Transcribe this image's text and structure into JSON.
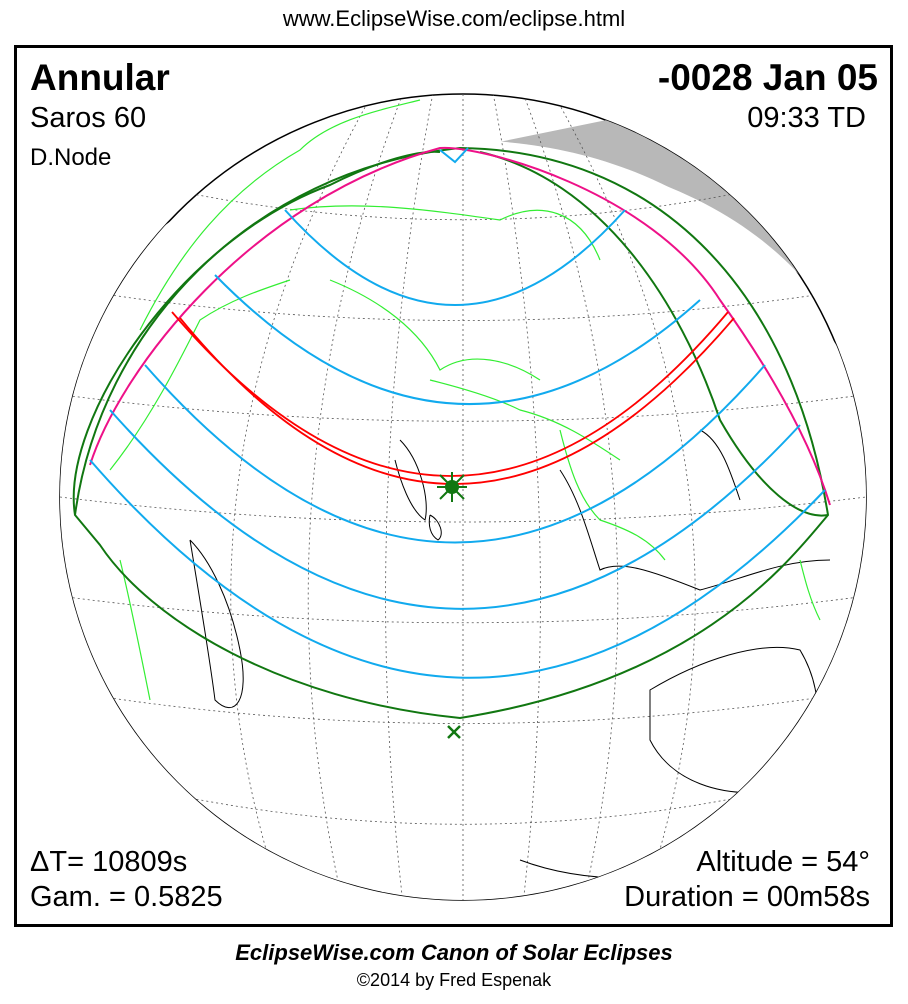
{
  "header": {
    "url": "www.EclipseWise.com/eclipse.html"
  },
  "eclipse": {
    "type": "Annular",
    "date": "-0028 Jan 05",
    "saros": "Saros  60",
    "time": "09:33 TD",
    "node": "D.Node",
    "delta_t": "ΔT=  10809s",
    "gamma": "Gam. = 0.5825",
    "altitude": "Altitude = 54°",
    "duration": "Duration = 00m58s"
  },
  "map": {
    "colors": {
      "night": "#b8b8b8",
      "borders": "#33ee33",
      "penumbra_limits": "#117711",
      "central_path": "#ff0000",
      "magnitude_curves": "#11aaee",
      "rise_set": "#ee1188"
    },
    "markers": {
      "greatest_eclipse": "star-icon",
      "sub_point": "x-icon"
    }
  },
  "footer": {
    "title": "EclipseWise.com Canon of Solar Eclipses",
    "copyright": "©2014 by Fred Espenak"
  }
}
